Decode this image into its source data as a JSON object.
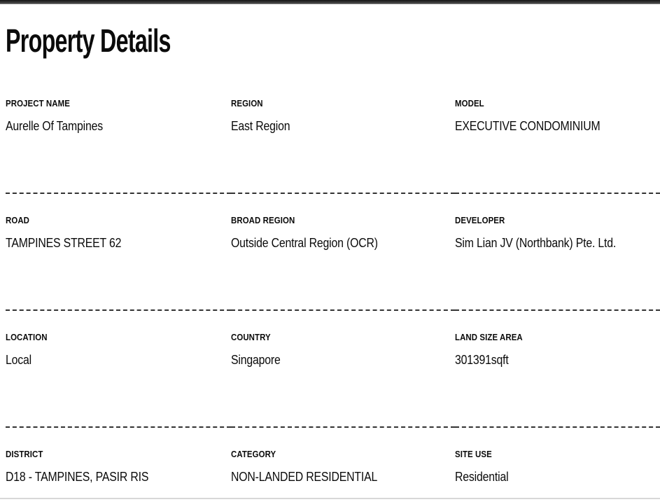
{
  "title": "Property Details",
  "fields": [
    {
      "label": "PROJECT NAME",
      "value": "Aurelle Of Tampines"
    },
    {
      "label": "REGION",
      "value": "East Region"
    },
    {
      "label": "MODEL",
      "value": "EXECUTIVE CONDOMINIUM"
    },
    {
      "label": "ROAD",
      "value": "TAMPINES STREET 62"
    },
    {
      "label": "BROAD REGION",
      "value": "Outside Central Region (OCR)"
    },
    {
      "label": "DEVELOPER",
      "value": "Sim Lian JV (Northbank) Pte. Ltd."
    },
    {
      "label": "LOCATION",
      "value": "Local"
    },
    {
      "label": "COUNTRY",
      "value": "Singapore"
    },
    {
      "label": "LAND SIZE AREA",
      "value": "301391sqft"
    },
    {
      "label": "DISTRICT",
      "value": "D18 - TAMPINES, PASIR RIS"
    },
    {
      "label": "CATEGORY",
      "value": "NON-LANDED RESIDENTIAL"
    },
    {
      "label": "SITE USE",
      "value": "Residential"
    }
  ],
  "colors": {
    "text": "#0b0b0b",
    "divider": "#333333",
    "top_bar": "#1c1c1c",
    "bottom_line": "#d8d8d8",
    "bg": "#ffffff"
  }
}
